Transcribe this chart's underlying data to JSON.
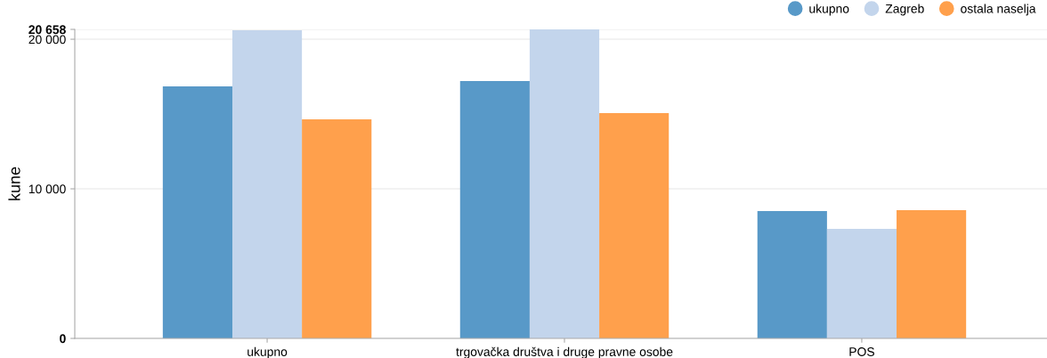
{
  "chart_data": {
    "type": "bar",
    "ylabel": "kune",
    "categories": [
      "ukupno",
      "trgovačka društva i druge pravne osobe",
      "POS"
    ],
    "series": [
      {
        "name": "ukupno",
        "color": "#5899c8",
        "values": [
          16850,
          17200,
          8510
        ]
      },
      {
        "name": "Zagreb",
        "color": "#c3d5ec",
        "values": [
          20600,
          20658,
          7320
        ]
      },
      {
        "name": "ostala naselja",
        "color": "#ffa04c",
        "values": [
          14640,
          15060,
          8570
        ]
      }
    ],
    "ylim": [
      0,
      20658
    ],
    "yticks": [
      0,
      10000,
      20000,
      20658
    ],
    "grid": "y",
    "legend": "top right",
    "marker": "circle"
  }
}
